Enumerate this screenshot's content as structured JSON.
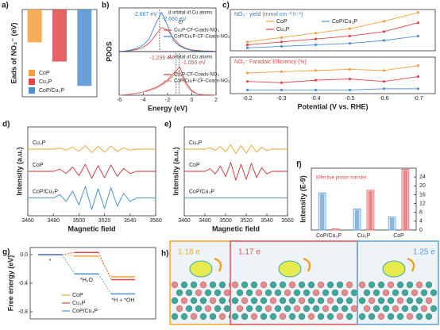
{
  "chart_data": [
    {
      "type": "bar",
      "panel": "a)",
      "y_label": "Eads of NO₃⁻ (eV)",
      "categories": [
        "CoP",
        "Cu₃P",
        "CoP/Cu₃P"
      ],
      "values": [
        -0.94,
        -1.49,
        -2.19
      ],
      "colors": [
        "#f5a03c",
        "#e0464a",
        "#4f8fd0"
      ],
      "ylim": [
        -2.5,
        0
      ]
    },
    {
      "type": "line",
      "panel": "b)",
      "y_label": "PDOS",
      "subtitle": "d orbital of Cu atoms",
      "note": "Ef",
      "annotation_color": "#3a7fc8",
      "annotations": [
        {
          "value": -2.667,
          "label": "-2.667 eV"
        },
        {
          "value": -2.66,
          "label": "-2.660 eV"
        }
      ],
      "x": [
        -6,
        -5.5,
        -5,
        -4.5,
        -4,
        -3.5,
        -3,
        -2.5,
        -2,
        -1.5,
        -1,
        -0.5,
        0,
        0.5,
        1,
        1.5,
        2
      ],
      "xlim": [
        -6,
        2
      ],
      "ylim": [
        0,
        4
      ],
      "series": [
        {
          "name": "Cu₃P-CF-Cuads-NO₃",
          "color": "#e0464a",
          "values": [
            0,
            0.05,
            0.1,
            0.2,
            0.4,
            0.8,
            1.5,
            2.2,
            2.0,
            1.2,
            0.6,
            0.3,
            0.15,
            0.1,
            0.05,
            0.05,
            0
          ]
        },
        {
          "name": "CoP/Cu₃P-CF-Cuads-NO₃",
          "color": "#3a7fc8",
          "values": [
            0,
            0.05,
            0.15,
            0.3,
            0.6,
            1.2,
            2.5,
            3.6,
            2.4,
            1.0,
            0.5,
            0.25,
            0.1,
            0.05,
            0.05,
            0.02,
            0
          ]
        }
      ]
    },
    {
      "type": "line",
      "x_label": "Energy (eV)",
      "subtitle": "d orbital of Co atoms",
      "annotation_color": "#e0464a",
      "annotations": [
        {
          "value": -1.296,
          "label": "-1.296 eV"
        },
        {
          "value": -1.05,
          "label": "-1.050 eV"
        }
      ],
      "x": [
        -6,
        -5.5,
        -5,
        -4.5,
        -4,
        -3.5,
        -3,
        -2.5,
        -2,
        -1.5,
        -1,
        -0.5,
        0,
        0.5,
        1,
        1.5,
        2
      ],
      "xlim": [
        -6,
        2
      ],
      "xticks": [
        -6,
        -4,
        -2,
        0,
        2
      ],
      "ylim": [
        0,
        4
      ],
      "series": [
        {
          "name": "Cu₃P-CF-Coads-NO₃",
          "color": "#d83a3a",
          "values": [
            0,
            0.05,
            0.1,
            0.2,
            0.3,
            0.5,
            0.7,
            1.0,
            1.4,
            2.0,
            2.6,
            1.2,
            0.4,
            0.1,
            0.05,
            0.05,
            0
          ]
        },
        {
          "name": "CoP/Cu₃P-CF-Coads-NO₃",
          "color": "#ec8a8a",
          "values": [
            0,
            0.05,
            0.1,
            0.2,
            0.3,
            0.4,
            0.6,
            0.9,
            1.3,
            1.8,
            2.2,
            1.0,
            0.3,
            0.1,
            0.05,
            0.05,
            0
          ]
        }
      ]
    },
    {
      "type": "line",
      "panel": "c)",
      "title": "NO₃⁻ yield (mmol cm⁻² h⁻¹)",
      "title_color": "#3a7fc8",
      "markers": true,
      "ylim": [
        0,
        0.28
      ],
      "series": [
        {
          "name": "CoP",
          "color": "#f5a03c",
          "values": [
            0.06,
            0.09,
            0.12,
            0.15,
            0.2,
            0.26
          ]
        },
        {
          "name": "CoP/Cu₃P",
          "color": "#4f8fd0",
          "values": [
            0.02,
            0.03,
            0.04,
            0.05,
            0.07,
            0.1
          ]
        },
        {
          "name": "Cu₃P",
          "color": "#e0464a",
          "values": [
            0.04,
            0.06,
            0.08,
            0.1,
            0.13,
            0.19
          ]
        }
      ]
    },
    {
      "type": "line",
      "title": "NO₃⁻ Faradaic Efficiency (%)",
      "title_color": "#e0464a",
      "markers": true,
      "x_label": "Potential (V vs. RHE)",
      "categories": [
        "-0.2",
        "-0.3",
        "-0.4",
        "-0.5",
        "-0.6",
        "-0.7"
      ],
      "ylim": [
        0,
        30
      ],
      "series": [
        {
          "color": "#f5a03c",
          "values": [
            17,
            18,
            19,
            20,
            19,
            23
          ]
        },
        {
          "color": "#e0464a",
          "values": [
            10,
            9,
            11,
            12,
            10,
            14
          ]
        },
        {
          "color": "#4f8fd0",
          "values": [
            3,
            3,
            3,
            3,
            4,
            4
          ]
        }
      ]
    },
    {
      "type": "line",
      "panel": "d)",
      "y_label": "Intensity (a.u.)",
      "x_label": "Magnetic field",
      "curve_labels": true,
      "x": [
        3460,
        3465,
        3470,
        3475,
        3480,
        3485,
        3490,
        3495,
        3500,
        3505,
        3510,
        3515,
        3520,
        3525,
        3530,
        3535,
        3540,
        3545,
        3550,
        3555,
        3560
      ],
      "xlim": [
        3460,
        3560
      ],
      "xticks": [
        3460,
        3480,
        3500,
        3520,
        3540,
        3560
      ],
      "ylim": [
        0,
        10
      ],
      "series": [
        {
          "name": "Cu₃P",
          "color": "#f0a030",
          "values": [
            7.5,
            7.5,
            7.5,
            7.5,
            7.5,
            7.62,
            7.38,
            7.74,
            7.26,
            7.9,
            7.1,
            7.82,
            7.14,
            7.86,
            7.22,
            7.66,
            7.38,
            7.5,
            7.5,
            7.5,
            7.5
          ]
        },
        {
          "name": "CoP",
          "color": "#d03030",
          "values": [
            5,
            5,
            5,
            5,
            5,
            5.24,
            4.76,
            5.48,
            4.52,
            5.8,
            4.2,
            5.64,
            4.28,
            5.72,
            4.44,
            5.32,
            4.76,
            5,
            5,
            5,
            5
          ]
        },
        {
          "name": "CoP/Cu₃P",
          "color": "#3a8ac8",
          "values": [
            2,
            2,
            2,
            2,
            2,
            2.39,
            1.61,
            2.78,
            1.22,
            3.3,
            0.7,
            3.04,
            0.83,
            3.17,
            1.09,
            2.52,
            1.61,
            2,
            2,
            2,
            2
          ]
        }
      ]
    },
    {
      "type": "line",
      "panel": "e)",
      "y_label": "Intensity (a.u.)",
      "x_label": "Magnetic field",
      "curve_labels": true,
      "x": [
        3460,
        3465,
        3470,
        3475,
        3480,
        3485,
        3490,
        3495,
        3500,
        3505,
        3510,
        3515,
        3520,
        3525,
        3530,
        3535,
        3540,
        3545,
        3550,
        3555,
        3560
      ],
      "xlim": [
        3460,
        3560
      ],
      "xticks": [
        3460,
        3480,
        3500,
        3520,
        3540,
        3560
      ],
      "ylim": [
        0,
        10
      ],
      "series": [
        {
          "name": "Cu₃P",
          "color": "#f0a030",
          "values": [
            7.5,
            7.5,
            7.5,
            7.5,
            7.5,
            7.65,
            7.35,
            7.8,
            7.2,
            8,
            7,
            7.9,
            7.05,
            7.95,
            7.15,
            7.7,
            7.35,
            7.5,
            7.5,
            7.5,
            7.5
          ]
        },
        {
          "name": "CoP",
          "color": "#d03030",
          "values": [
            5,
            5,
            5,
            5,
            5,
            5.3,
            4.7,
            5.6,
            4.4,
            6,
            4,
            5.8,
            4.1,
            5.9,
            4.3,
            5.4,
            4.7,
            5,
            5,
            5,
            5
          ]
        },
        {
          "name": "CoP/Cu₃P",
          "color": "#3a8ac8",
          "values": [
            2,
            2,
            2,
            2,
            2,
            2,
            2,
            2,
            2,
            2,
            2,
            2,
            2,
            2,
            2,
            2,
            2,
            2,
            2,
            2,
            2
          ]
        }
      ]
    },
    {
      "type": "bar",
      "panel": "f)",
      "y_label": "Intensity (E-9)",
      "annotation": "Effective proton transfer",
      "annotation_color": "#e0464a",
      "categories": [
        "CoP/Cu₃P",
        "Cu₃P",
        "CoP"
      ],
      "ylim": [
        0,
        50
      ],
      "y2lim": [
        0,
        28
      ],
      "y2ticks": [
        0,
        4,
        8,
        12,
        16,
        20,
        24
      ],
      "series": [
        {
          "color": "#6aa6d8",
          "values": [
            30,
            17,
            10.5
          ]
        },
        {
          "color": "#e46a6a",
          "axis": "y2",
          "values": [
            0.5,
            18,
            27.5
          ]
        }
      ]
    },
    {
      "type": "step",
      "panel": "g)",
      "y_label": "Free energy (eV)",
      "categories": [
        "*",
        "*H₂O",
        "*H + *OH"
      ],
      "ylim": [
        -0.9,
        0.1
      ],
      "yticks": [
        {
          "value": 0,
          "label": "0.0"
        },
        -0.4,
        -0.8
      ],
      "series": [
        {
          "name": "CoP",
          "color": "#f5a03c",
          "values": [
            0,
            -0.02,
            -0.31
          ]
        },
        {
          "name": "Cu₃P",
          "color": "#e0464a",
          "values": [
            0,
            0.03,
            -0.35
          ]
        },
        {
          "name": "CoP/Cu₃P",
          "color": "#4f8fd0",
          "values": [
            0,
            -0.27,
            -0.55
          ]
        }
      ]
    }
  ],
  "structures": {
    "panel": "h)",
    "items": [
      {
        "charge": "1.18 e",
        "color": "#f5a623"
      },
      {
        "charge": "1.17 e",
        "color": "#e05050"
      },
      {
        "charge": "1.25 e",
        "color": "#5aa0d8"
      }
    ]
  }
}
